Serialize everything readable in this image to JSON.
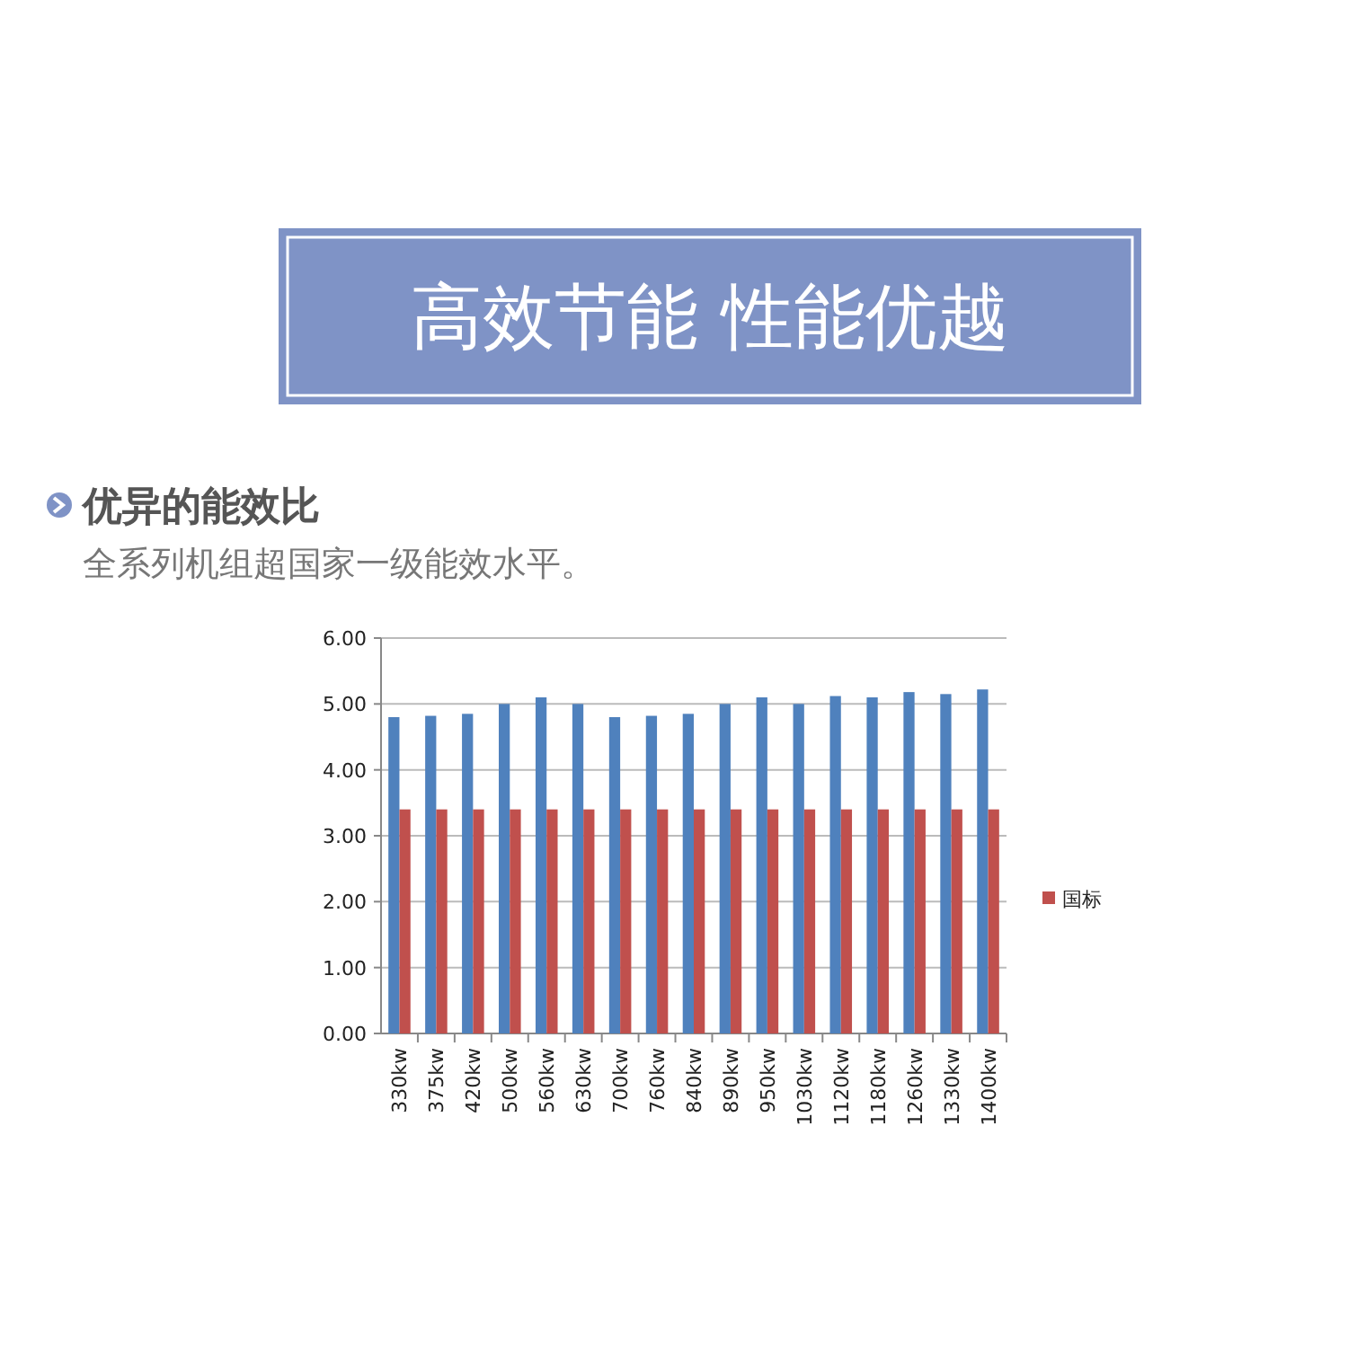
{
  "chart_data": {
    "type": "bar",
    "title": "高效节能 性能优越",
    "subtitle": "优异的能效比",
    "annotations": [
      "全系列机组超国家一级能效水平。"
    ],
    "categories": [
      "330kw",
      "375kw",
      "420kw",
      "500kw",
      "560kw",
      "630kw",
      "700kw",
      "760kw",
      "840kw",
      "890kw",
      "950kw",
      "1030kw",
      "1120kw",
      "1180kw",
      "1260kw",
      "1330kw",
      "1400kw"
    ],
    "series": [
      {
        "color": "#4f81bd",
        "values": [
          4.8,
          4.82,
          4.85,
          5.0,
          5.1,
          5.0,
          4.8,
          4.82,
          4.85,
          5.0,
          5.1,
          5.0,
          5.12,
          5.1,
          5.18,
          5.15,
          5.22
        ]
      },
      {
        "name": "国标",
        "color": "#c0504d",
        "values": [
          3.4,
          3.4,
          3.4,
          3.4,
          3.4,
          3.4,
          3.4,
          3.4,
          3.4,
          3.4,
          3.4,
          3.4,
          3.4,
          3.4,
          3.4,
          3.4,
          3.4
        ]
      }
    ],
    "ylim": [
      0,
      6
    ],
    "yticks": [
      {
        "value": 0,
        "label": "0.00"
      },
      {
        "value": 1,
        "label": "1.00"
      },
      {
        "value": 2,
        "label": "2.00"
      },
      {
        "value": 3,
        "label": "3.00"
      },
      {
        "value": 4,
        "label": "4.00"
      },
      {
        "value": 5,
        "label": "5.00"
      },
      {
        "value": 6,
        "label": "6.00"
      }
    ],
    "grid": "y",
    "legend": "right"
  }
}
